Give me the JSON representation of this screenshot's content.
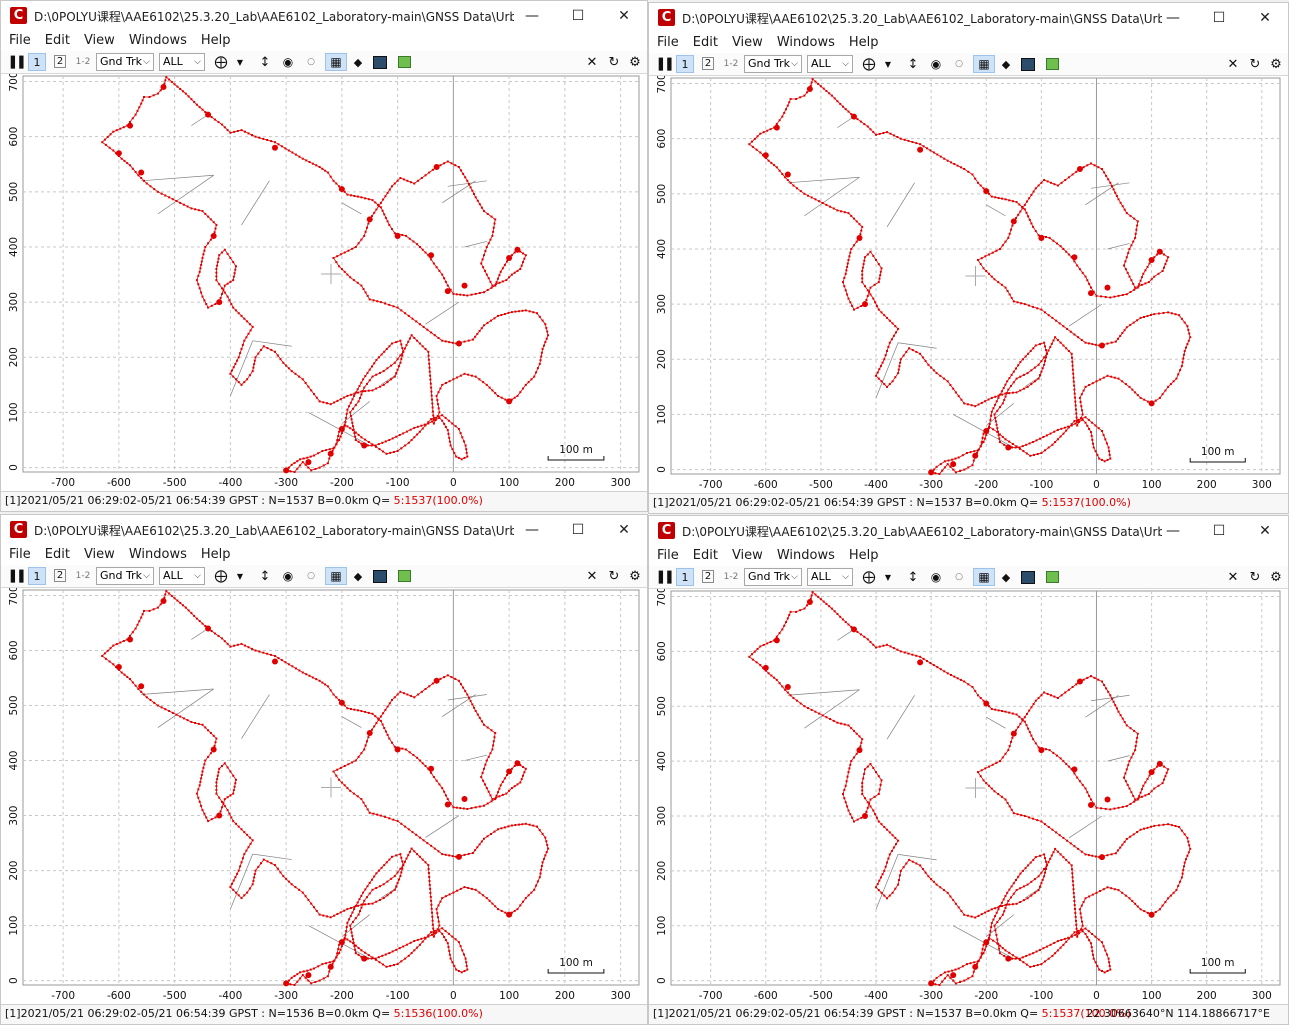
{
  "windows": [
    {
      "title": "D:\\0POLYU课程\\AAE6102\\25.3.20_Lab\\AAE6102_Laboratory-main\\GNSS Data\\UrbanNav...",
      "status_main": "[1]2021/05/21 06:29:02-05/21 06:54:39 GPST : N=1537 B=0.0km Q= ",
      "status_q": "5:1537(100.0%)",
      "coord_text": ""
    },
    {
      "title": "D:\\0POLYU课程\\AAE6102\\25.3.20_Lab\\AAE6102_Laboratory-main\\GNSS Data\\UrbanNav...",
      "status_main": "[1]2021/05/21 06:29:02-05/21 06:54:39 GPST : N=1537 B=0.0km Q= ",
      "status_q": "5:1537(100.0%)",
      "coord_text": ""
    },
    {
      "title": "D:\\0POLYU课程\\AAE6102\\25.3.20_Lab\\AAE6102_Laboratory-main\\GNSS Data\\UrbanNav...",
      "status_main": "[1]2021/05/21 06:29:02-05/21 06:54:39 GPST : N=1536 B=0.0km Q= ",
      "status_q": "5:1536(100.0%)",
      "coord_text": ""
    },
    {
      "title": "D:\\0POLYU课程\\AAE6102\\25.3.20_Lab\\AAE6102_Laboratory-main\\GNSS Data\\UrbanNav...",
      "status_main": "[1]2021/05/21 06:29:02-05/21 06:54:39 GPST : N=1537 B=0.0km Q= ",
      "status_q": "5:1537(100.0%)",
      "coord_text": "22.30663640°N  114.18866717°E"
    }
  ],
  "menu": [
    "File",
    "Edit",
    "View",
    "Windows",
    "Help"
  ],
  "toolbar": {
    "btn1": "1",
    "btn2": "2",
    "btn12": "1-2",
    "plot_type": "Gnd Trk",
    "sat_filter": "ALL"
  },
  "icons": [
    "app-icon",
    "minimize-icon",
    "maximize-icon",
    "close-icon",
    "pause-icon",
    "crosshair-icon",
    "dropdown-arrow-icon",
    "vertical-range-icon",
    "center-icon",
    "small-dot-icon",
    "grid-icon",
    "point-icon",
    "map-icon",
    "image-icon",
    "close-plot-icon",
    "reload-icon",
    "gear-icon"
  ],
  "colors": {
    "track": "#e00000",
    "link": "#808080",
    "grid": "#c8c8c8",
    "active_button": "#cfe3f8"
  },
  "scale_label": "100 m",
  "chart_data": {
    "type": "scatter",
    "xlabel": "",
    "ylabel": "",
    "x_ticks": [
      -700,
      -600,
      -500,
      -400,
      -300,
      -200,
      -100,
      0,
      100,
      200,
      300
    ],
    "y_ticks": [
      0,
      100,
      200,
      300,
      400,
      500,
      600,
      700
    ],
    "xlim": [
      -772,
      333
    ],
    "ylim": [
      -8,
      710
    ],
    "grid": true,
    "track": [
      [
        -610,
        609
      ],
      [
        -585,
        620
      ],
      [
        -570,
        640
      ],
      [
        -560,
        660
      ],
      [
        -555,
        672
      ],
      [
        -545,
        672
      ],
      [
        -530,
        678
      ],
      [
        -520,
        690
      ],
      [
        -515,
        708
      ],
      [
        -500,
        695
      ],
      [
        -480,
        678
      ],
      [
        -460,
        658
      ],
      [
        -440,
        640
      ],
      [
        -415,
        622
      ],
      [
        -400,
        607
      ],
      [
        -380,
        612
      ],
      [
        -355,
        600
      ],
      [
        -320,
        590
      ],
      [
        -295,
        575
      ],
      [
        -270,
        560
      ],
      [
        -240,
        545
      ],
      [
        -225,
        535
      ],
      [
        -215,
        520
      ],
      [
        -200,
        505
      ],
      [
        -190,
        495
      ],
      [
        -165,
        490
      ],
      [
        -145,
        485
      ],
      [
        -130,
        472
      ],
      [
        -115,
        440
      ],
      [
        -105,
        425
      ],
      [
        -85,
        420
      ],
      [
        -65,
        405
      ],
      [
        -45,
        385
      ],
      [
        -35,
        370
      ],
      [
        -20,
        350
      ],
      [
        -10,
        330
      ],
      [
        0,
        315
      ],
      [
        25,
        312
      ],
      [
        55,
        318
      ],
      [
        75,
        330
      ],
      [
        85,
        355
      ],
      [
        100,
        380
      ],
      [
        115,
        395
      ],
      [
        130,
        385
      ],
      [
        120,
        360
      ],
      [
        105,
        350
      ],
      [
        95,
        340
      ],
      [
        70,
        330
      ],
      [
        60,
        350
      ],
      [
        50,
        370
      ],
      [
        60,
        400
      ],
      [
        70,
        420
      ],
      [
        75,
        450
      ],
      [
        55,
        465
      ],
      [
        40,
        490
      ],
      [
        25,
        520
      ],
      [
        10,
        545
      ],
      [
        -10,
        555
      ],
      [
        -30,
        545
      ],
      [
        -50,
        530
      ],
      [
        -70,
        515
      ],
      [
        -95,
        525
      ],
      [
        -110,
        510
      ],
      [
        -130,
        480
      ],
      [
        -150,
        450
      ],
      [
        -160,
        420
      ],
      [
        -175,
        400
      ],
      [
        -195,
        390
      ],
      [
        -215,
        380
      ],
      [
        -205,
        365
      ],
      [
        -185,
        345
      ],
      [
        -165,
        330
      ],
      [
        -150,
        305
      ],
      [
        -130,
        300
      ],
      [
        -100,
        290
      ],
      [
        -80,
        275
      ],
      [
        -60,
        260
      ],
      [
        -40,
        245
      ],
      [
        -20,
        230
      ],
      [
        5,
        225
      ],
      [
        35,
        232
      ],
      [
        55,
        258
      ],
      [
        80,
        275
      ],
      [
        105,
        282
      ],
      [
        130,
        285
      ],
      [
        150,
        280
      ],
      [
        165,
        260
      ],
      [
        170,
        240
      ],
      [
        160,
        215
      ],
      [
        155,
        188
      ],
      [
        145,
        165
      ],
      [
        130,
        150
      ],
      [
        115,
        130
      ],
      [
        100,
        120
      ],
      [
        80,
        130
      ],
      [
        60,
        150
      ],
      [
        40,
        165
      ],
      [
        20,
        170
      ],
      [
        0,
        160
      ],
      [
        -20,
        150
      ],
      [
        -30,
        130
      ],
      [
        -25,
        100
      ],
      [
        -35,
        80
      ],
      [
        -45,
        210
      ],
      [
        -60,
        225
      ],
      [
        -75,
        240
      ],
      [
        -90,
        210
      ],
      [
        -105,
        190
      ],
      [
        -125,
        175
      ],
      [
        -145,
        165
      ],
      [
        -160,
        145
      ],
      [
        -170,
        120
      ],
      [
        -185,
        100
      ],
      [
        -180,
        75
      ],
      [
        -175,
        50
      ],
      [
        -160,
        40
      ],
      [
        -140,
        40
      ],
      [
        -115,
        50
      ],
      [
        -90,
        62
      ],
      [
        -70,
        72
      ],
      [
        -45,
        80
      ],
      [
        -25,
        90
      ],
      [
        -20,
        85
      ],
      [
        -10,
        68
      ],
      [
        -5,
        40
      ],
      [
        5,
        20
      ],
      [
        15,
        15
      ],
      [
        25,
        20
      ],
      [
        22,
        40
      ],
      [
        10,
        70
      ],
      [
        -20,
        95
      ],
      [
        -40,
        88
      ],
      [
        -60,
        65
      ],
      [
        -80,
        45
      ],
      [
        -100,
        30
      ],
      [
        -120,
        25
      ],
      [
        -145,
        42
      ],
      [
        -165,
        55
      ],
      [
        -180,
        68
      ],
      [
        -195,
        78
      ],
      [
        -205,
        65
      ],
      [
        -210,
        42
      ],
      [
        -220,
        25
      ],
      [
        -225,
        8
      ],
      [
        -240,
        0
      ],
      [
        -255,
        -5
      ],
      [
        -270,
        10
      ],
      [
        -285,
        -8
      ],
      [
        -300,
        -5
      ],
      [
        -290,
        5
      ],
      [
        -275,
        15
      ],
      [
        -262,
        18
      ],
      [
        -250,
        22
      ],
      [
        -235,
        30
      ],
      [
        -215,
        35
      ],
      [
        -205,
        50
      ],
      [
        -195,
        75
      ],
      [
        -190,
        105
      ],
      [
        -178,
        130
      ],
      [
        -162,
        160
      ],
      [
        -138,
        195
      ],
      [
        -110,
        225
      ],
      [
        -95,
        230
      ],
      [
        -90,
        210
      ],
      [
        -95,
        190
      ],
      [
        -105,
        165
      ],
      [
        -125,
        150
      ],
      [
        -145,
        140
      ],
      [
        -165,
        138
      ],
      [
        -190,
        130
      ],
      [
        -220,
        115
      ],
      [
        -240,
        120
      ],
      [
        -255,
        140
      ],
      [
        -270,
        160
      ],
      [
        -290,
        175
      ],
      [
        -305,
        190
      ],
      [
        -320,
        210
      ],
      [
        -340,
        220
      ],
      [
        -355,
        200
      ],
      [
        -360,
        175
      ],
      [
        -370,
        160
      ],
      [
        -380,
        150
      ],
      [
        -390,
        160
      ],
      [
        -400,
        170
      ],
      [
        -385,
        200
      ],
      [
        -375,
        230
      ],
      [
        -360,
        255
      ],
      [
        -375,
        270
      ],
      [
        -395,
        290
      ],
      [
        -405,
        310
      ],
      [
        -415,
        325
      ],
      [
        -425,
        340
      ],
      [
        -425,
        360
      ],
      [
        -420,
        385
      ],
      [
        -410,
        395
      ],
      [
        -400,
        380
      ],
      [
        -390,
        365
      ],
      [
        -395,
        340
      ],
      [
        -410,
        330
      ],
      [
        -420,
        300
      ],
      [
        -440,
        290
      ],
      [
        -450,
        310
      ],
      [
        -460,
        340
      ],
      [
        -455,
        355
      ],
      [
        -450,
        380
      ],
      [
        -445,
        400
      ],
      [
        -430,
        420
      ],
      [
        -425,
        440
      ],
      [
        -450,
        465
      ],
      [
        -470,
        470
      ],
      [
        -490,
        480
      ],
      [
        -510,
        490
      ],
      [
        -530,
        500
      ],
      [
        -550,
        515
      ],
      [
        -565,
        530
      ],
      [
        -580,
        548
      ],
      [
        -595,
        560
      ],
      [
        -610,
        575
      ],
      [
        -630,
        590
      ],
      [
        -610,
        609
      ]
    ],
    "links": [
      [
        [
          -560,
          520
        ],
        [
          -430,
          530
        ]
      ],
      [
        [
          -530,
          460
        ],
        [
          -430,
          530
        ]
      ],
      [
        [
          -380,
          440
        ],
        [
          -330,
          520
        ]
      ],
      [
        [
          -400,
          130
        ],
        [
          -360,
          230
        ]
      ],
      [
        [
          -360,
          230
        ],
        [
          -290,
          220
        ]
      ],
      [
        [
          -260,
          100
        ],
        [
          -150,
          40
        ]
      ],
      [
        [
          -200,
          80
        ],
        [
          -150,
          120
        ]
      ],
      [
        [
          -130,
          150
        ],
        [
          -100,
          170
        ]
      ],
      [
        [
          -50,
          260
        ],
        [
          10,
          300
        ]
      ],
      [
        [
          20,
          400
        ],
        [
          60,
          410
        ]
      ],
      [
        [
          -10,
          510
        ],
        [
          60,
          520
        ]
      ],
      [
        [
          -20,
          480
        ],
        [
          40,
          520
        ]
      ],
      [
        [
          -200,
          480
        ],
        [
          -165,
          460
        ]
      ],
      [
        [
          -470,
          620
        ],
        [
          -440,
          640
        ]
      ]
    ],
    "spikes": [
      [
        -580,
        620
      ],
      [
        -520,
        690
      ],
      [
        -440,
        640
      ],
      [
        -320,
        580
      ],
      [
        -200,
        505
      ],
      [
        -100,
        420
      ],
      [
        -40,
        385
      ],
      [
        20,
        330
      ],
      [
        100,
        380
      ],
      [
        115,
        395
      ],
      [
        -30,
        545
      ],
      [
        -150,
        450
      ],
      [
        -10,
        320
      ],
      [
        10,
        225
      ],
      [
        100,
        120
      ],
      [
        -160,
        40
      ],
      [
        -200,
        70
      ],
      [
        -220,
        25
      ],
      [
        -260,
        10
      ],
      [
        -300,
        -5
      ],
      [
        -420,
        300
      ],
      [
        -430,
        420
      ],
      [
        -560,
        535
      ],
      [
        -600,
        570
      ]
    ]
  }
}
